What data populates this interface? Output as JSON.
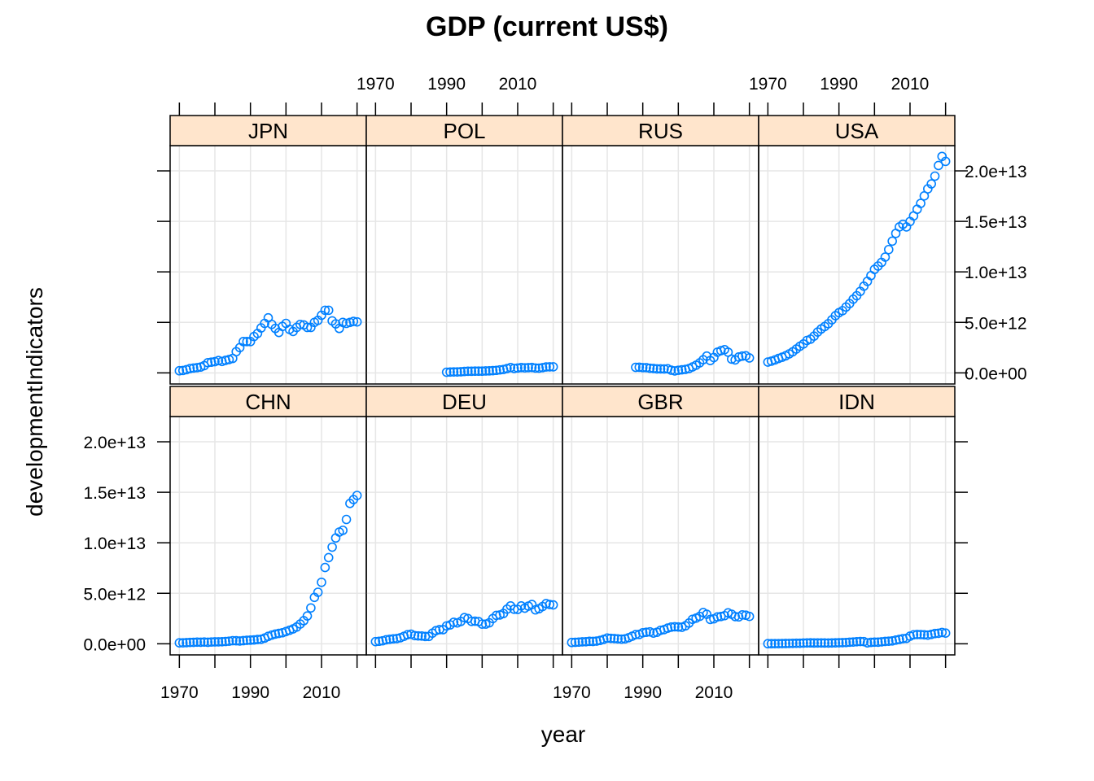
{
  "chart_data": {
    "type": "scatter",
    "title": "GDP (current US$)",
    "xlabel": "year",
    "ylabel": "developmentIndicators",
    "x_ticks": [
      1970,
      1990,
      2010
    ],
    "y_ticks": [
      "0.0e+00",
      "5.0e+12",
      "1.0e+13",
      "1.5e+13",
      "2.0e+13"
    ],
    "y_tick_values": [
      0,
      5000000000000.0,
      10000000000000.0,
      15000000000000.0,
      20000000000000.0
    ],
    "xlim": [
      1967.4,
      2022.6
    ],
    "ylim": [
      -1100000000000.0,
      22500000000000.0
    ],
    "point_color": "#0080ff",
    "strip_color": "#ffe5cc",
    "grid": true,
    "layout": "4 columns x 2 rows",
    "panels": [
      {
        "name": "JPN",
        "years": [
          1970,
          1971,
          1972,
          1973,
          1974,
          1975,
          1976,
          1977,
          1978,
          1979,
          1980,
          1981,
          1982,
          1983,
          1984,
          1985,
          1986,
          1987,
          1988,
          1989,
          1990,
          1991,
          1992,
          1993,
          1994,
          1995,
          1996,
          1997,
          1998,
          1999,
          2000,
          2001,
          2002,
          2003,
          2004,
          2005,
          2006,
          2007,
          2008,
          2009,
          2010,
          2011,
          2012,
          2013,
          2014,
          2015,
          2016,
          2017,
          2018,
          2019,
          2020
        ],
        "values": [
          210000000000.0,
          240000000000.0,
          320000000000.0,
          430000000000.0,
          480000000000.0,
          520000000000.0,
          580000000000.0,
          720000000000.0,
          1010000000000.0,
          1060000000000.0,
          1110000000000.0,
          1220000000000.0,
          1130000000000.0,
          1240000000000.0,
          1320000000000.0,
          1430000000000.0,
          2100000000000.0,
          2500000000000.0,
          3100000000000.0,
          3100000000000.0,
          3100000000000.0,
          3600000000000.0,
          3900000000000.0,
          4450000000000.0,
          4900000000000.0,
          5450000000000.0,
          4800000000000.0,
          4400000000000.0,
          4000000000000.0,
          4600000000000.0,
          4900000000000.0,
          4300000000000.0,
          4100000000000.0,
          4500000000000.0,
          4800000000000.0,
          4750000000000.0,
          4500000000000.0,
          4500000000000.0,
          5000000000000.0,
          5200000000000.0,
          5700000000000.0,
          6200000000000.0,
          6200000000000.0,
          5150000000000.0,
          4850000000000.0,
          4400000000000.0,
          5000000000000.0,
          4900000000000.0,
          5000000000000.0,
          5100000000000.0,
          5050000000000.0
        ]
      },
      {
        "name": "POL",
        "years": [
          1990,
          1991,
          1992,
          1993,
          1994,
          1995,
          1996,
          1997,
          1998,
          1999,
          2000,
          2001,
          2002,
          2003,
          2004,
          2005,
          2006,
          2007,
          2008,
          2009,
          2010,
          2011,
          2012,
          2013,
          2014,
          2015,
          2016,
          2017,
          2018,
          2019,
          2020
        ],
        "values": [
          65000000000.0,
          85000000000.0,
          94000000000.0,
          96000000000.0,
          110000000000.0,
          140000000000.0,
          160000000000.0,
          160000000000.0,
          170000000000.0,
          170000000000.0,
          170000000000.0,
          190000000000.0,
          200000000000.0,
          220000000000.0,
          250000000000.0,
          300000000000.0,
          340000000000.0,
          430000000000.0,
          530000000000.0,
          440000000000.0,
          480000000000.0,
          530000000000.0,
          500000000000.0,
          520000000000.0,
          540000000000.0,
          480000000000.0,
          470000000000.0,
          520000000000.0,
          590000000000.0,
          600000000000.0,
          600000000000.0
        ]
      },
      {
        "name": "RUS",
        "years": [
          1988,
          1989,
          1990,
          1991,
          1992,
          1993,
          1994,
          1995,
          1996,
          1997,
          1998,
          1999,
          2000,
          2001,
          2002,
          2003,
          2004,
          2005,
          2006,
          2007,
          2008,
          2009,
          2010,
          2011,
          2012,
          2013,
          2014,
          2015,
          2016,
          2017,
          2018,
          2019,
          2020
        ],
        "values": [
          550000000000.0,
          560000000000.0,
          520000000000.0,
          520000000000.0,
          460000000000.0,
          435000000000.0,
          395000000000.0,
          395000000000.0,
          390000000000.0,
          405000000000.0,
          270000000000.0,
          195000000000.0,
          260000000000.0,
          305000000000.0,
          345000000000.0,
          430000000000.0,
          590000000000.0,
          760000000000.0,
          990000000000.0,
          1300000000000.0,
          1660000000000.0,
          1220000000000.0,
          1520000000000.0,
          2050000000000.0,
          2200000000000.0,
          2300000000000.0,
          2050000000000.0,
          1360000000000.0,
          1280000000000.0,
          1570000000000.0,
          1660000000000.0,
          1690000000000.0,
          1480000000000.0
        ]
      },
      {
        "name": "USA",
        "years": [
          1970,
          1971,
          1972,
          1973,
          1974,
          1975,
          1976,
          1977,
          1978,
          1979,
          1980,
          1981,
          1982,
          1983,
          1984,
          1985,
          1986,
          1987,
          1988,
          1989,
          1990,
          1991,
          1992,
          1993,
          1994,
          1995,
          1996,
          1997,
          1998,
          1999,
          2000,
          2001,
          2002,
          2003,
          2004,
          2005,
          2006,
          2007,
          2008,
          2009,
          2010,
          2011,
          2012,
          2013,
          2014,
          2015,
          2016,
          2017,
          2018,
          2019,
          2020
        ],
        "values": [
          1070000000000.0,
          1160000000000.0,
          1280000000000.0,
          1430000000000.0,
          1550000000000.0,
          1690000000000.0,
          1880000000000.0,
          2090000000000.0,
          2360000000000.0,
          2630000000000.0,
          2860000000000.0,
          3210000000000.0,
          3340000000000.0,
          3640000000000.0,
          4040000000000.0,
          4350000000000.0,
          4590000000000.0,
          4870000000000.0,
          5250000000000.0,
          5660000000000.0,
          5960000000000.0,
          6160000000000.0,
          6520000000000.0,
          6860000000000.0,
          7290000000000.0,
          7640000000000.0,
          8070000000000.0,
          8580000000000.0,
          9060000000000.0,
          9630000000000.0,
          10250000000000.0,
          10580000000000.0,
          10940000000000.0,
          11460000000000.0,
          12210000000000.0,
          13040000000000.0,
          13810000000000.0,
          14450000000000.0,
          14710000000000.0,
          14450000000000.0,
          14990000000000.0,
          15540000000000.0,
          16200000000000.0,
          16780000000000.0,
          17520000000000.0,
          18220000000000.0,
          18710000000000.0,
          19480000000000.0,
          20530000000000.0,
          21430000000000.0,
          20940000000000.0
        ]
      },
      {
        "name": "CHN",
        "years": [
          1970,
          1971,
          1972,
          1973,
          1974,
          1975,
          1976,
          1977,
          1978,
          1979,
          1980,
          1981,
          1982,
          1983,
          1984,
          1985,
          1986,
          1987,
          1988,
          1989,
          1990,
          1991,
          1992,
          1993,
          1994,
          1995,
          1996,
          1997,
          1998,
          1999,
          2000,
          2001,
          2002,
          2003,
          2004,
          2005,
          2006,
          2007,
          2008,
          2009,
          2010,
          2011,
          2012,
          2013,
          2014,
          2015,
          2016,
          2017,
          2018,
          2019,
          2020
        ],
        "values": [
          92000000000.0,
          99000000000.0,
          114000000000.0,
          138000000000.0,
          144000000000.0,
          163000000000.0,
          154000000000.0,
          175000000000.0,
          150000000000.0,
          179000000000.0,
          191000000000.0,
          196000000000.0,
          205000000000.0,
          230000000000.0,
          260000000000.0,
          309000000000.0,
          301000000000.0,
          273000000000.0,
          312000000000.0,
          348000000000.0,
          361000000000.0,
          383000000000.0,
          427000000000.0,
          445000000000.0,
          564000000000.0,
          734000000000.0,
          863000000000.0,
          962000000000.0,
          1029000000000.0,
          1094000000000.0,
          1211000000000.0,
          1339000000000.0,
          1471000000000.0,
          1660000000000.0,
          1955000000000.0,
          2286000000000.0,
          2752000000000.0,
          3550000000000.0,
          4594000000000.0,
          5102000000000.0,
          6087000000000.0,
          7552000000000.0,
          8532000000000.0,
          9570000000000.0,
          10475000000000.0,
          11062000000000.0,
          11233000000000.0,
          12310000000000.0,
          13895000000000.0,
          14280000000000.0,
          14688000000000.0
        ]
      },
      {
        "name": "DEU",
        "years": [
          1970,
          1971,
          1972,
          1973,
          1974,
          1975,
          1976,
          1977,
          1978,
          1979,
          1980,
          1981,
          1982,
          1983,
          1984,
          1985,
          1986,
          1987,
          1988,
          1989,
          1990,
          1991,
          1992,
          1993,
          1994,
          1995,
          1996,
          1997,
          1998,
          1999,
          2000,
          2001,
          2002,
          2003,
          2004,
          2005,
          2006,
          2007,
          2008,
          2009,
          2010,
          2011,
          2012,
          2013,
          2014,
          2015,
          2016,
          2017,
          2018,
          2019,
          2020
        ],
        "values": [
          215000000000.0,
          249000000000.0,
          299000000000.0,
          398000000000.0,
          445000000000.0,
          490000000000.0,
          519000000000.0,
          600000000000.0,
          740000000000.0,
          897000000000.0,
          950000000000.0,
          810000000000.0,
          782000000000.0,
          770000000000.0,
          725000000000.0,
          730000000000.0,
          1050000000000.0,
          1300000000000.0,
          1400000000000.0,
          1400000000000.0,
          1770000000000.0,
          1870000000000.0,
          2130000000000.0,
          2070000000000.0,
          2210000000000.0,
          2590000000000.0,
          2500000000000.0,
          2220000000000.0,
          2240000000000.0,
          2200000000000.0,
          1950000000000.0,
          1950000000000.0,
          2080000000000.0,
          2500000000000.0,
          2810000000000.0,
          2850000000000.0,
          3000000000000.0,
          3430000000000.0,
          3750000000000.0,
          3420000000000.0,
          3400000000000.0,
          3750000000000.0,
          3530000000000.0,
          3730000000000.0,
          3890000000000.0,
          3360000000000.0,
          3470000000000.0,
          3690000000000.0,
          3980000000000.0,
          3890000000000.0,
          3850000000000.0
        ]
      },
      {
        "name": "GBR",
        "years": [
          1970,
          1971,
          1972,
          1973,
          1974,
          1975,
          1976,
          1977,
          1978,
          1979,
          1980,
          1981,
          1982,
          1983,
          1984,
          1985,
          1986,
          1987,
          1988,
          1989,
          1990,
          1991,
          1992,
          1993,
          1994,
          1995,
          1996,
          1997,
          1998,
          1999,
          2000,
          2001,
          2002,
          2003,
          2004,
          2005,
          2006,
          2007,
          2008,
          2009,
          2010,
          2011,
          2012,
          2013,
          2014,
          2015,
          2016,
          2017,
          2018,
          2019,
          2020
        ],
        "values": [
          131000000000.0,
          148000000000.0,
          169000000000.0,
          193000000000.0,
          206000000000.0,
          242000000000.0,
          232000000000.0,
          263000000000.0,
          335000000000.0,
          438000000000.0,
          564000000000.0,
          540000000000.0,
          515000000000.0,
          489000000000.0,
          461000000000.0,
          489000000000.0,
          601000000000.0,
          746000000000.0,
          910000000000.0,
          926000000000.0,
          1093000000000.0,
          1142000000000.0,
          1179000000000.0,
          1061000000000.0,
          1140000000000.0,
          1336000000000.0,
          1405000000000.0,
          1550000000000.0,
          1650000000000.0,
          1682000000000.0,
          1662000000000.0,
          1641000000000.0,
          1782000000000.0,
          2054000000000.0,
          2422000000000.0,
          2543000000000.0,
          2709000000000.0,
          3090000000000.0,
          2923000000000.0,
          2410000000000.0,
          2475000000000.0,
          2659000000000.0,
          2704000000000.0,
          2786000000000.0,
          3064000000000.0,
          2928000000000.0,
          2694000000000.0,
          2666000000000.0,
          2861000000000.0,
          2829000000000.0,
          2707000000000.0
        ]
      },
      {
        "name": "IDN",
        "years": [
          1970,
          1971,
          1972,
          1973,
          1974,
          1975,
          1976,
          1977,
          1978,
          1979,
          1980,
          1981,
          1982,
          1983,
          1984,
          1985,
          1986,
          1987,
          1988,
          1989,
          1990,
          1991,
          1992,
          1993,
          1994,
          1995,
          1996,
          1997,
          1998,
          1999,
          2000,
          2001,
          2002,
          2003,
          2004,
          2005,
          2006,
          2007,
          2008,
          2009,
          2010,
          2011,
          2012,
          2013,
          2014,
          2015,
          2016,
          2017,
          2018,
          2019,
          2020
        ],
        "values": [
          9200000000.0,
          9500000000.0,
          11000000000.0,
          16000000000.0,
          25000000000.0,
          30000000000.0,
          37000000000.0,
          46000000000.0,
          52000000000.0,
          52000000000.0,
          72000000000.0,
          85000000000.0,
          90000000000.0,
          81000000000.0,
          85000000000.0,
          87000000000.0,
          81000000000.0,
          76000000000.0,
          87000000000.0,
          95000000000.0,
          106000000000.0,
          116000000000.0,
          128000000000.0,
          158000000000.0,
          177000000000.0,
          202000000000.0,
          228000000000.0,
          215000000000.0,
          95000000000.0,
          140000000000.0,
          165000000000.0,
          160000000000.0,
          196000000000.0,
          235000000000.0,
          257000000000.0,
          286000000000.0,
          365000000000.0,
          432000000000.0,
          510000000000.0,
          540000000000.0,
          755000000000.0,
          893000000000.0,
          918000000000.0,
          913000000000.0,
          891000000000.0,
          861000000000.0,
          932000000000.0,
          1016000000000.0,
          1043000000000.0,
          1119000000000.0,
          1058000000000.0
        ]
      }
    ]
  }
}
